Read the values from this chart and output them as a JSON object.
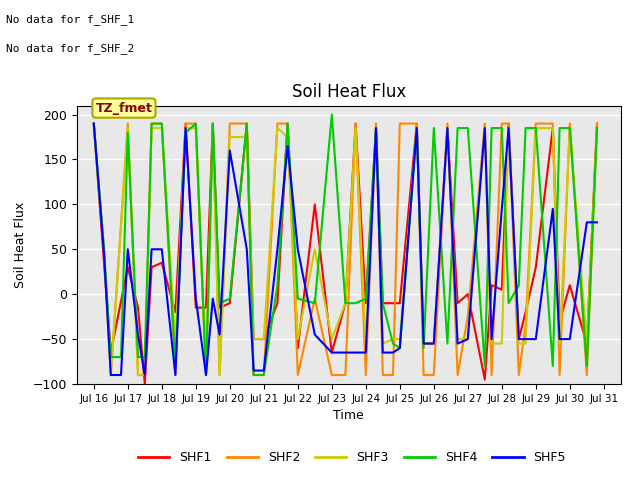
{
  "title": "Soil Heat Flux",
  "ylabel": "Soil Heat Flux",
  "xlabel": "Time",
  "annotation_line1": "No data for f_SHF_1",
  "annotation_line2": "No data for f_SHF_2",
  "box_label": "TZ_fmet",
  "legend_labels": [
    "SHF1",
    "SHF2",
    "SHF3",
    "SHF4",
    "SHF5"
  ],
  "colors": [
    "#ff0000",
    "#ff8800",
    "#cccc00",
    "#00cc00",
    "#0000ff"
  ],
  "xlim": [
    15.5,
    31.5
  ],
  "ylim": [
    -100,
    210
  ],
  "yticks": [
    -100,
    -50,
    0,
    50,
    100,
    150,
    200
  ],
  "xtick_labels": [
    "Jul 16",
    "Jul 17",
    "Jul 18",
    "Jul 19",
    "Jul 20",
    "Jul 21",
    "Jul 22",
    "Jul 23",
    "Jul 24",
    "Jul 25",
    "Jul 26",
    "Jul 27",
    "Jul 28",
    "Jul 29",
    "Jul 30",
    "Jul 31"
  ],
  "xtick_positions": [
    16,
    17,
    18,
    19,
    20,
    21,
    22,
    23,
    24,
    25,
    26,
    27,
    28,
    29,
    30,
    31
  ],
  "background_color": "#e8e8e8",
  "shf1_x": [
    16.0,
    16.3,
    16.5,
    17.0,
    17.3,
    17.5,
    17.7,
    18.0,
    18.4,
    18.7,
    19.0,
    19.3,
    19.5,
    19.7,
    20.0,
    20.5,
    20.7,
    21.0,
    21.4,
    21.7,
    22.0,
    22.5,
    23.0,
    23.4,
    23.7,
    24.0,
    24.3,
    24.5,
    24.8,
    25.0,
    25.5,
    25.7,
    26.0,
    26.4,
    26.7,
    27.0,
    27.5,
    27.7,
    28.0,
    28.2,
    28.5,
    28.7,
    29.0,
    29.5,
    29.7,
    30.0,
    30.5,
    30.8
  ],
  "shf1_y": [
    190,
    35,
    -65,
    30,
    -15,
    -100,
    30,
    35,
    -20,
    190,
    -15,
    -15,
    190,
    -15,
    -10,
    190,
    -50,
    -50,
    -10,
    190,
    -60,
    100,
    -65,
    -10,
    190,
    -10,
    185,
    -10,
    -10,
    -10,
    190,
    -55,
    -55,
    185,
    -10,
    0,
    -95,
    10,
    5,
    190,
    -50,
    -20,
    30,
    185,
    -30,
    10,
    -55,
    190
  ],
  "shf2_x": [
    16.0,
    16.3,
    16.5,
    17.0,
    17.3,
    17.5,
    17.7,
    18.0,
    18.4,
    18.7,
    19.0,
    19.3,
    19.5,
    19.7,
    20.0,
    20.5,
    20.7,
    21.0,
    21.4,
    21.7,
    22.0,
    22.5,
    23.0,
    23.4,
    23.7,
    24.0,
    24.3,
    24.5,
    24.8,
    25.0,
    25.5,
    25.7,
    26.0,
    26.4,
    26.7,
    27.0,
    27.5,
    27.7,
    28.0,
    28.2,
    28.5,
    28.7,
    29.0,
    29.5,
    29.7,
    30.0,
    30.5,
    30.8
  ],
  "shf2_y": [
    190,
    50,
    -90,
    190,
    -90,
    -90,
    190,
    190,
    -90,
    190,
    190,
    -90,
    190,
    -90,
    190,
    190,
    -90,
    -90,
    190,
    190,
    -90,
    -5,
    -90,
    -90,
    190,
    -90,
    190,
    -90,
    -90,
    190,
    190,
    -90,
    -90,
    190,
    -90,
    -25,
    190,
    -90,
    190,
    190,
    -90,
    -35,
    190,
    190,
    -90,
    190,
    -90,
    190
  ],
  "shf3_x": [
    16.0,
    16.3,
    16.5,
    17.0,
    17.3,
    17.5,
    17.7,
    18.0,
    18.4,
    18.7,
    19.0,
    19.3,
    19.5,
    19.7,
    20.0,
    20.5,
    20.7,
    21.0,
    21.4,
    21.7,
    22.0,
    22.5,
    23.0,
    23.4,
    23.7,
    24.0,
    24.3,
    24.5,
    24.8,
    25.0,
    25.5,
    25.7,
    26.0,
    26.4,
    26.7,
    27.0,
    27.5,
    27.7,
    28.0,
    28.2,
    28.5,
    28.7,
    29.0,
    29.5,
    29.7,
    30.0,
    30.5,
    30.8
  ],
  "shf3_y": [
    185,
    50,
    -90,
    185,
    -90,
    -90,
    185,
    185,
    -55,
    185,
    185,
    -90,
    185,
    -90,
    175,
    175,
    -50,
    -50,
    185,
    175,
    -50,
    50,
    -50,
    -10,
    185,
    -55,
    185,
    -55,
    -50,
    -50,
    185,
    -55,
    -55,
    185,
    -50,
    -50,
    185,
    -55,
    -55,
    185,
    -55,
    -55,
    185,
    185,
    -55,
    185,
    -55,
    185
  ],
  "shf4_x": [
    16.0,
    16.3,
    16.5,
    16.8,
    17.0,
    17.3,
    17.5,
    17.7,
    18.0,
    18.4,
    18.7,
    19.0,
    19.3,
    19.5,
    19.7,
    20.0,
    20.5,
    20.7,
    21.0,
    21.4,
    21.7,
    22.0,
    22.5,
    23.0,
    23.4,
    23.7,
    24.0,
    24.3,
    24.5,
    24.8,
    25.0,
    25.5,
    25.7,
    26.0,
    26.4,
    26.7,
    27.0,
    27.5,
    27.7,
    28.0,
    28.2,
    28.5,
    28.7,
    29.0,
    29.5,
    29.7,
    30.0,
    30.5,
    30.8
  ],
  "shf4_y": [
    190,
    50,
    -70,
    -70,
    180,
    -70,
    -70,
    190,
    190,
    -80,
    180,
    190,
    -90,
    190,
    -10,
    -5,
    190,
    -90,
    -90,
    10,
    190,
    -5,
    -10,
    200,
    -10,
    -10,
    -5,
    185,
    -10,
    -55,
    -60,
    185,
    -60,
    185,
    -55,
    185,
    185,
    -80,
    185,
    185,
    -10,
    10,
    185,
    185,
    -80,
    185,
    185,
    -80,
    185
  ],
  "shf5_x": [
    16.0,
    16.3,
    16.5,
    16.8,
    17.0,
    17.3,
    17.5,
    17.7,
    18.0,
    18.4,
    18.7,
    19.0,
    19.3,
    19.5,
    19.7,
    20.0,
    20.5,
    20.7,
    21.0,
    21.4,
    21.7,
    22.0,
    22.5,
    23.0,
    23.4,
    23.7,
    24.0,
    24.3,
    24.5,
    24.8,
    25.0,
    25.5,
    25.7,
    26.0,
    26.4,
    26.7,
    27.0,
    27.5,
    27.7,
    28.0,
    28.2,
    28.5,
    28.7,
    29.0,
    29.5,
    29.7,
    30.0,
    30.5,
    30.8
  ],
  "shf5_y": [
    190,
    45,
    -90,
    -90,
    50,
    -45,
    -90,
    50,
    50,
    -90,
    185,
    -5,
    -90,
    -5,
    -45,
    160,
    50,
    -85,
    -85,
    50,
    165,
    50,
    -45,
    -65,
    -65,
    -65,
    -65,
    185,
    -65,
    -65,
    -60,
    185,
    -55,
    -55,
    185,
    -55,
    -50,
    185,
    -50,
    95,
    185,
    -50,
    -50,
    -50,
    95,
    -50,
    -50,
    80,
    80
  ]
}
